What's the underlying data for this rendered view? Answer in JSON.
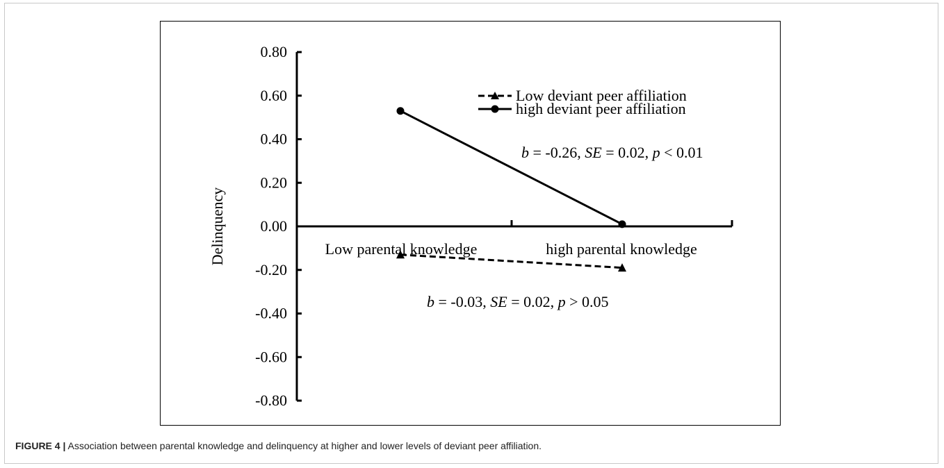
{
  "figure": {
    "caption_label": "FIGURE 4 |",
    "caption_text": " Association between parental knowledge and delinquency at higher and lower levels of deviant peer affiliation."
  },
  "chart_data": {
    "type": "line",
    "ylabel": "Delinquency",
    "xlabel": "",
    "categories": [
      "Low parental knowledge",
      "high parental knowledge"
    ],
    "ylim": [
      -0.8,
      0.8
    ],
    "yticks": [
      "0.80",
      "0.60",
      "0.40",
      "0.20",
      "0.00",
      "-0.20",
      "-0.40",
      "-0.60",
      "-0.80"
    ],
    "grid": false,
    "legend_position": "top-right",
    "series": [
      {
        "name": "Low deviant peer affiliation",
        "values": [
          -0.13,
          -0.19
        ],
        "marker": "triangle",
        "dash": "dashed",
        "color": "#000000",
        "annotation": {
          "b_label": "b",
          "b_value": " = -0.03, ",
          "se_label": "SE",
          "se_value": " = 0.02, ",
          "p_label": "p",
          "p_value": " > 0.05"
        }
      },
      {
        "name": "high deviant peer affiliation",
        "values": [
          0.53,
          0.01
        ],
        "marker": "circle",
        "dash": "solid",
        "color": "#000000",
        "annotation": {
          "b_label": "b",
          "b_value": " = -0.26, ",
          "se_label": "SE",
          "se_value": " = 0.02, ",
          "p_label": "p",
          "p_value": " < 0.01"
        }
      }
    ]
  }
}
